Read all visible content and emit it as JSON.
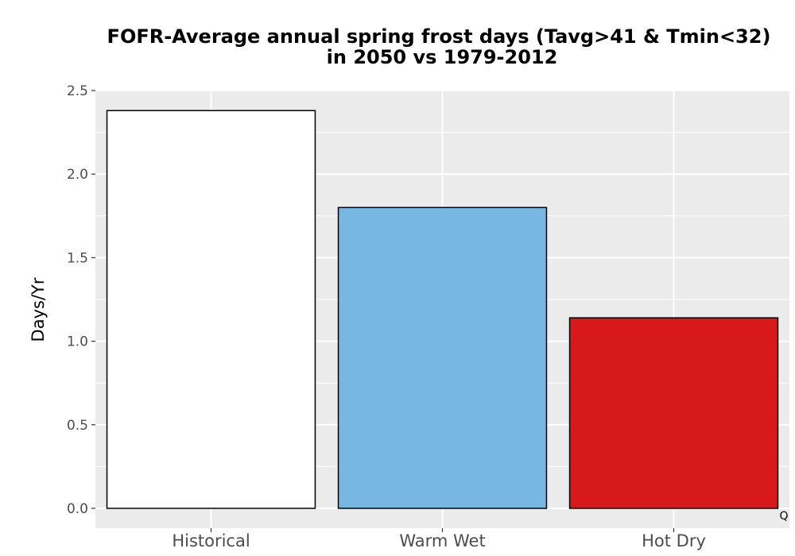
{
  "chart_data": {
    "type": "bar",
    "title_lines": [
      "FOFR-Average annual spring frost days (Tavg>41 & Tmin<32)",
      "in 2050 vs 1979-2012"
    ],
    "xlabel": "",
    "ylabel": "Days/Yr",
    "categories": [
      "Historical",
      "Warm Wet",
      "Hot Dry"
    ],
    "values": [
      2.38,
      1.8,
      1.14
    ],
    "bar_colors": [
      "#ffffff",
      "#78b7e1",
      "#d7191c"
    ],
    "bar_outline_color": "#000000",
    "ylim": [
      0,
      2.5
    ],
    "yticks": [
      0.0,
      0.5,
      1.0,
      1.5,
      2.0,
      2.5
    ],
    "ytick_labels": [
      "0.0",
      "0.5",
      "1.0",
      "1.5",
      "2.0",
      "2.5"
    ],
    "grid": true,
    "panel_background": "#ebebeb",
    "grid_color": "#ffffff",
    "legend": "none",
    "corner_mark": "Q"
  }
}
